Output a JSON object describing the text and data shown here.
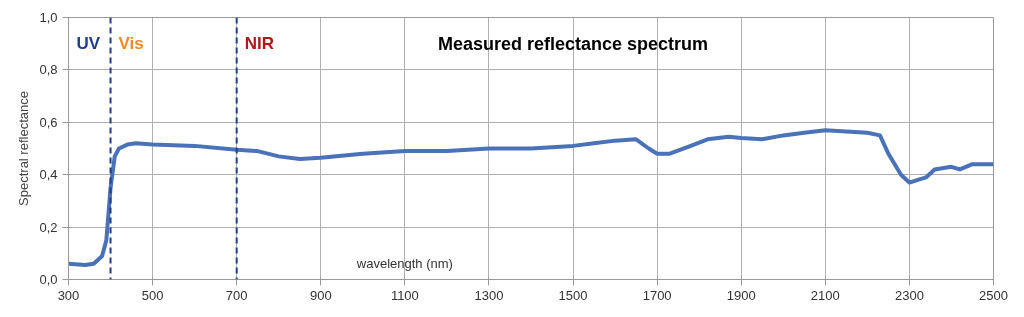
{
  "chart_data": {
    "type": "line",
    "title": "Measured reflectance spectrum",
    "xlabel": "wavelength (nm)",
    "ylabel": "Spectral reflectance",
    "x": [
      300,
      340,
      360,
      380,
      390,
      400,
      410,
      420,
      440,
      460,
      500,
      600,
      700,
      750,
      800,
      850,
      900,
      1000,
      1100,
      1200,
      1300,
      1400,
      1500,
      1550,
      1600,
      1650,
      1680,
      1700,
      1730,
      1780,
      1820,
      1870,
      1900,
      1950,
      2000,
      2050,
      2100,
      2150,
      2200,
      2230,
      2250,
      2280,
      2300,
      2320,
      2340,
      2360,
      2400,
      2420,
      2450,
      2480,
      2500
    ],
    "series": [
      {
        "color": "#4a72b8",
        "values": [
          0.06,
          0.055,
          0.06,
          0.09,
          0.15,
          0.35,
          0.47,
          0.5,
          0.515,
          0.52,
          0.515,
          0.51,
          0.495,
          0.49,
          0.47,
          0.46,
          0.465,
          0.48,
          0.49,
          0.49,
          0.5,
          0.5,
          0.51,
          0.52,
          0.53,
          0.535,
          0.5,
          0.48,
          0.48,
          0.51,
          0.535,
          0.545,
          0.54,
          0.535,
          0.55,
          0.56,
          0.57,
          0.565,
          0.56,
          0.55,
          0.48,
          0.4,
          0.37,
          0.38,
          0.39,
          0.42,
          0.43,
          0.42,
          0.44,
          0.44,
          0.44
        ]
      }
    ],
    "annotations": [
      "UV",
      "Vis",
      "NIR"
    ],
    "ref_lines": [
      {
        "axis": "x",
        "value": 400,
        "color": "#1f3d8a",
        "line_style": "dashed"
      },
      {
        "axis": "x",
        "value": 700,
        "color": "#1f3d8a",
        "line_style": "dashed"
      }
    ],
    "xlim": [
      300,
      2500
    ],
    "xticks": [
      300,
      500,
      700,
      900,
      1100,
      1300,
      1500,
      1700,
      1900,
      2100,
      2300,
      2500
    ],
    "ylim": [
      0,
      1
    ],
    "yticks": [
      {
        "value": 0,
        "label": "0,0"
      },
      {
        "value": 0.2,
        "label": "0,2"
      },
      {
        "value": 0.4,
        "label": "0,4"
      },
      {
        "value": 0.6,
        "label": "0,6"
      },
      {
        "value": 0.8,
        "label": "0,8"
      },
      {
        "value": 1,
        "label": "1,0"
      }
    ],
    "grid": true
  }
}
